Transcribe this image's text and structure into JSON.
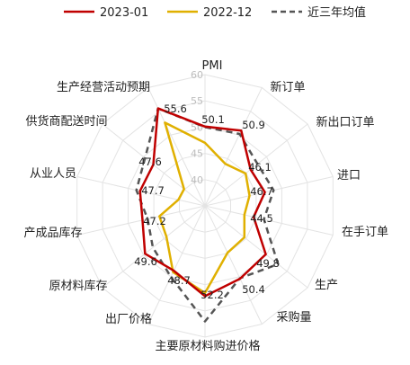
{
  "chart_data": {
    "type": "radar",
    "title": "",
    "categories": [
      "PMI",
      "新订单",
      "新出口订单",
      "进口",
      "在手订单",
      "生产",
      "采购量",
      "主要原材料购进价格",
      "出厂价格",
      "原材料库存",
      "产成品库存",
      "从业人员",
      "供货商配送时间",
      "生产经营活动预期"
    ],
    "series": [
      {
        "name": "2023-01",
        "values": [
          50.1,
          50.9,
          46.1,
          46.7,
          44.5,
          49.8,
          50.4,
          52.2,
          48.7,
          49.6,
          47.2,
          47.7,
          47.6,
          55.6
        ],
        "color": "#c00000",
        "style": "solid"
      },
      {
        "name": "2022-12",
        "values": [
          47.0,
          43.9,
          44.9,
          43.7,
          42.7,
          44.6,
          44.9,
          51.6,
          49.0,
          44.4,
          43.9,
          40.2,
          40.1,
          52.6
        ],
        "color": "#e0b000",
        "style": "solid"
      },
      {
        "name": "近三年均值",
        "values": [
          50.0,
          50.2,
          47.8,
          48.4,
          46.5,
          52.8,
          50.3,
          57.0,
          50.0,
          47.7,
          46.2,
          48.4,
          49.6,
          55.6
        ],
        "color": "#555555",
        "style": "dashed"
      }
    ],
    "value_labels": [
      "50.1",
      "50.9",
      "46.1",
      "46.7",
      "44.5",
      "49.8",
      "50.4",
      "52.2",
      "48.7",
      "49.6",
      "47.2",
      "47.7",
      "47.6",
      "55.6"
    ],
    "radial_ticks": [
      "40",
      "45",
      "50",
      "55",
      "60"
    ],
    "rlim": [
      35,
      60
    ],
    "grid": true,
    "legend": "top"
  }
}
